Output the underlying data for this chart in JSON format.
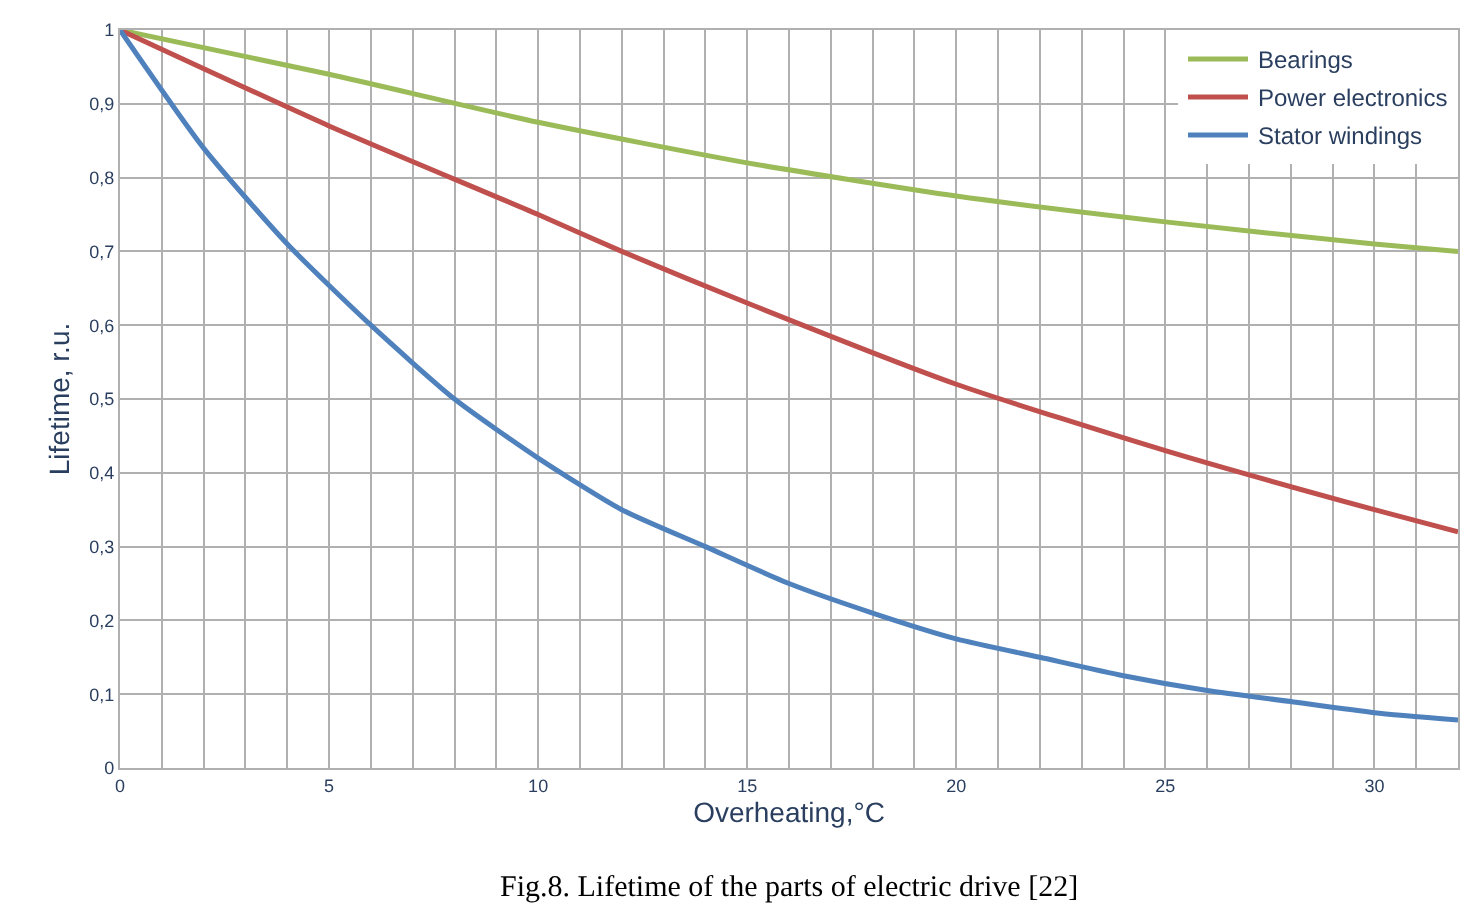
{
  "chart_data": {
    "type": "line",
    "xlabel": "Overheating,°C",
    "ylabel": "Lifetime, r.u.",
    "annotations": [
      "Fig.8. Lifetime of the parts of electric drive [22]"
    ],
    "xlim": [
      0,
      32
    ],
    "ylim": [
      0,
      1
    ],
    "xticks": [
      0,
      {
        "value": 1,
        "label": null
      },
      {
        "value": 2,
        "label": null
      },
      {
        "value": 3,
        "label": null
      },
      {
        "value": 4,
        "label": null
      },
      5,
      {
        "value": 6,
        "label": null
      },
      {
        "value": 7,
        "label": null
      },
      {
        "value": 8,
        "label": null
      },
      {
        "value": 9,
        "label": null
      },
      10,
      {
        "value": 11,
        "label": null
      },
      {
        "value": 12,
        "label": null
      },
      {
        "value": 13,
        "label": null
      },
      {
        "value": 14,
        "label": null
      },
      15,
      {
        "value": 16,
        "label": null
      },
      {
        "value": 17,
        "label": null
      },
      {
        "value": 18,
        "label": null
      },
      {
        "value": 19,
        "label": null
      },
      20,
      {
        "value": 21,
        "label": null
      },
      {
        "value": 22,
        "label": null
      },
      {
        "value": 23,
        "label": null
      },
      {
        "value": 24,
        "label": null
      },
      25,
      {
        "value": 26,
        "label": null
      },
      {
        "value": 27,
        "label": null
      },
      {
        "value": 28,
        "label": null
      },
      {
        "value": 29,
        "label": null
      },
      30,
      {
        "value": 31,
        "label": null
      }
    ],
    "yticks": [
      0,
      {
        "value": 0.1,
        "label": "0,1"
      },
      {
        "value": 0.2,
        "label": "0,2"
      },
      {
        "value": 0.3,
        "label": "0,3"
      },
      {
        "value": 0.4,
        "label": "0,4"
      },
      {
        "value": 0.5,
        "label": "0,5"
      },
      {
        "value": 0.6,
        "label": "0,6"
      },
      {
        "value": 0.7,
        "label": "0,7"
      },
      {
        "value": 0.8,
        "label": "0,8"
      },
      {
        "value": 0.9,
        "label": "0,9"
      },
      1
    ],
    "grid": true,
    "legend": "top right",
    "marker": "none",
    "line_style": "solid",
    "series": [
      {
        "name": "Bearings",
        "color": "#9bbb59",
        "x": [
          0,
          5,
          10,
          15,
          20,
          25,
          30,
          32
        ],
        "values": [
          1,
          0.94,
          0.875,
          0.82,
          0.775,
          0.74,
          0.71,
          0.7
        ]
      },
      {
        "name": "Power electronics",
        "color": "#c0504d",
        "x": [
          0,
          5,
          10,
          12,
          15,
          20,
          25,
          30,
          32
        ],
        "values": [
          1,
          0.87,
          0.75,
          0.7,
          0.63,
          0.52,
          0.43,
          0.35,
          0.32
        ]
      },
      {
        "name": "Stator windings",
        "color": "#4f81bd",
        "x": [
          0,
          2,
          4,
          6,
          8,
          10,
          12,
          14,
          16,
          18,
          20,
          22,
          24,
          26,
          28,
          30,
          32
        ],
        "values": [
          1,
          0.84,
          0.71,
          0.6,
          0.5,
          0.42,
          0.35,
          0.3,
          0.25,
          0.21,
          0.175,
          0.15,
          0.125,
          0.105,
          0.09,
          0.075,
          0.065
        ]
      }
    ]
  }
}
